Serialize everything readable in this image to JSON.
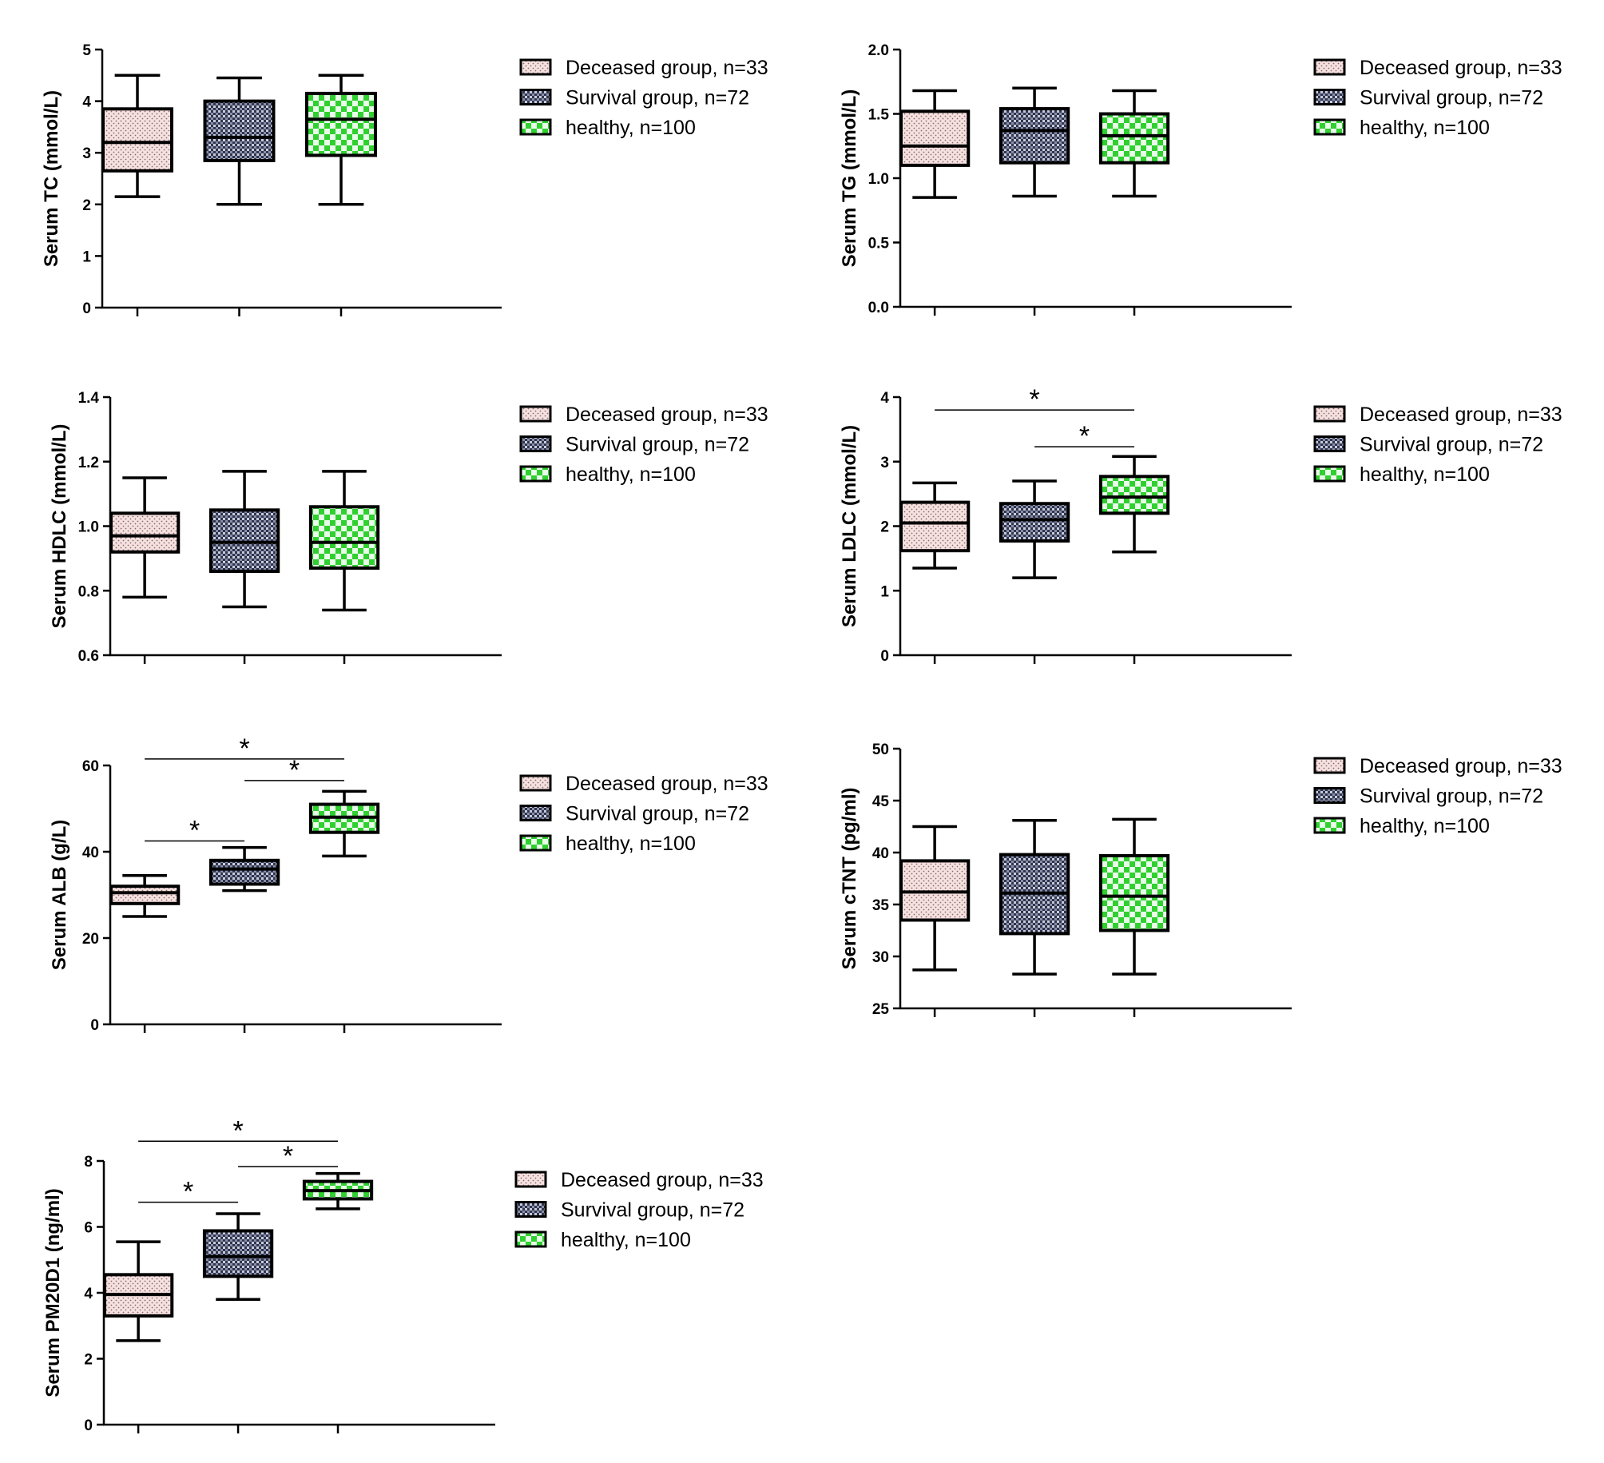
{
  "legend_labels": [
    "Deceased group, n=33",
    "Survival group, n=72",
    "healthy, n=100"
  ],
  "group_fills": [
    "dotted-pink",
    "crosshatch-gray",
    "checker-green"
  ],
  "colors": {
    "pink": "#f6e1e1",
    "gray": "#8a8fa6",
    "green": "#2fd02f",
    "ink": "#000000"
  },
  "chart_data": [
    {
      "type": "box",
      "ylabel": "Serum TC (mmol/L)",
      "ylim": [
        0,
        5
      ],
      "yticks": [
        "0",
        "1",
        "2",
        "3",
        "4",
        "5"
      ],
      "ytick_values": [
        0,
        1,
        2,
        3,
        4,
        5
      ],
      "categories": [
        "",
        "",
        ""
      ],
      "series": [
        {
          "name": "Deceased group, n=33",
          "min": 2.15,
          "q1": 2.65,
          "median": 3.2,
          "q3": 3.85,
          "max": 4.5
        },
        {
          "name": "Survival group, n=72",
          "min": 2.0,
          "q1": 2.85,
          "median": 3.3,
          "q3": 4.0,
          "max": 4.45
        },
        {
          "name": "healthy, n=100",
          "min": 2.0,
          "q1": 2.95,
          "median": 3.65,
          "q3": 4.15,
          "max": 4.5
        }
      ],
      "significance": []
    },
    {
      "type": "box",
      "ylabel": "Serum TG (mmol/L)",
      "ylim": [
        0,
        2
      ],
      "yticks": [
        "0.0",
        "0.5",
        "1.0",
        "1.5",
        "2.0"
      ],
      "ytick_values": [
        0,
        0.5,
        1,
        1.5,
        2
      ],
      "categories": [
        "",
        "",
        ""
      ],
      "series": [
        {
          "name": "Deceased group, n=33",
          "min": 0.85,
          "q1": 1.1,
          "median": 1.25,
          "q3": 1.52,
          "max": 1.68
        },
        {
          "name": "Survival group, n=72",
          "min": 0.86,
          "q1": 1.12,
          "median": 1.37,
          "q3": 1.54,
          "max": 1.7
        },
        {
          "name": "healthy, n=100",
          "min": 0.86,
          "q1": 1.12,
          "median": 1.33,
          "q3": 1.5,
          "max": 1.68
        }
      ],
      "significance": []
    },
    {
      "type": "box",
      "ylabel": "Serum HDLC (mmol/L)",
      "ylim": [
        0.6,
        1.4
      ],
      "yticks": [
        "0.6",
        "0.8",
        "1.0",
        "1.2",
        "1.4"
      ],
      "ytick_values": [
        0.6,
        0.8,
        1.0,
        1.2,
        1.4
      ],
      "categories": [
        "",
        "",
        ""
      ],
      "series": [
        {
          "name": "Deceased group, n=33",
          "min": 0.78,
          "q1": 0.92,
          "median": 0.97,
          "q3": 1.04,
          "max": 1.15
        },
        {
          "name": "Survival group, n=72",
          "min": 0.75,
          "q1": 0.86,
          "median": 0.95,
          "q3": 1.05,
          "max": 1.17
        },
        {
          "name": "healthy, n=100",
          "min": 0.74,
          "q1": 0.87,
          "median": 0.95,
          "q3": 1.06,
          "max": 1.17
        }
      ],
      "significance": []
    },
    {
      "type": "box",
      "ylabel": "Serum LDLC (mmol/L)",
      "ylim": [
        0,
        4
      ],
      "yticks": [
        "0",
        "1",
        "2",
        "3",
        "4"
      ],
      "ytick_values": [
        0,
        1,
        2,
        3,
        4
      ],
      "categories": [
        "",
        "",
        ""
      ],
      "series": [
        {
          "name": "Deceased group, n=33",
          "min": 1.35,
          "q1": 1.62,
          "median": 2.05,
          "q3": 2.37,
          "max": 2.67
        },
        {
          "name": "Survival group, n=72",
          "min": 1.2,
          "q1": 1.77,
          "median": 2.1,
          "q3": 2.35,
          "max": 2.7
        },
        {
          "name": "healthy, n=100",
          "min": 1.6,
          "q1": 2.2,
          "median": 2.45,
          "q3": 2.77,
          "max": 3.08
        }
      ],
      "significance": [
        {
          "from": 0,
          "to": 2,
          "y": 3.8,
          "label": "*"
        },
        {
          "from": 1,
          "to": 2,
          "y": 3.23,
          "label": "*"
        }
      ]
    },
    {
      "type": "box",
      "ylabel": "Serum ALB (g/L)",
      "ylim": [
        0,
        60
      ],
      "yticks": [
        "0",
        "20",
        "40",
        "60"
      ],
      "ytick_values": [
        0,
        20,
        40,
        60
      ],
      "categories": [
        "",
        "",
        ""
      ],
      "series": [
        {
          "name": "Deceased group, n=33",
          "min": 25,
          "q1": 28,
          "median": 30.5,
          "q3": 32,
          "max": 34.5
        },
        {
          "name": "Survival group, n=72",
          "min": 31,
          "q1": 32.5,
          "median": 36,
          "q3": 38,
          "max": 41
        },
        {
          "name": "healthy, n=100",
          "min": 39,
          "q1": 44.5,
          "median": 48,
          "q3": 51,
          "max": 54
        }
      ],
      "significance": [
        {
          "from": 0,
          "to": 2,
          "y": 61.5,
          "label": "*"
        },
        {
          "from": 1,
          "to": 2,
          "y": 56.5,
          "label": "*"
        },
        {
          "from": 0,
          "to": 1,
          "y": 42.5,
          "label": "*"
        }
      ]
    },
    {
      "type": "box",
      "ylabel": "Serum cTNT (pg/ml)",
      "ylim": [
        25,
        50
      ],
      "yticks": [
        "25",
        "30",
        "35",
        "40",
        "45",
        "50"
      ],
      "ytick_values": [
        25,
        30,
        35,
        40,
        45,
        50
      ],
      "categories": [
        "",
        "",
        ""
      ],
      "series": [
        {
          "name": "Deceased group, n=33",
          "min": 28.7,
          "q1": 33.5,
          "median": 36.2,
          "q3": 39.2,
          "max": 42.5
        },
        {
          "name": "Survival group, n=72",
          "min": 28.3,
          "q1": 32.2,
          "median": 36.1,
          "q3": 39.8,
          "max": 43.1
        },
        {
          "name": "healthy, n=100",
          "min": 28.3,
          "q1": 32.5,
          "median": 35.8,
          "q3": 39.7,
          "max": 43.2
        }
      ],
      "significance": []
    },
    {
      "type": "box",
      "ylabel": "Serum PM20D1 (ng/ml)",
      "ylim": [
        0,
        8
      ],
      "yticks": [
        "0",
        "2",
        "4",
        "6",
        "8"
      ],
      "ytick_values": [
        0,
        2,
        4,
        6,
        8
      ],
      "categories": [
        "",
        "",
        ""
      ],
      "series": [
        {
          "name": "Deceased group, n=33",
          "min": 2.55,
          "q1": 3.3,
          "median": 3.95,
          "q3": 4.55,
          "max": 5.55
        },
        {
          "name": "Survival group, n=72",
          "min": 3.8,
          "q1": 4.5,
          "median": 5.1,
          "q3": 5.88,
          "max": 6.4
        },
        {
          "name": "healthy, n=100",
          "min": 6.55,
          "q1": 6.85,
          "median": 7.1,
          "q3": 7.38,
          "max": 7.62
        }
      ],
      "significance": [
        {
          "from": 0,
          "to": 2,
          "y": 8.6,
          "label": "*"
        },
        {
          "from": 1,
          "to": 2,
          "y": 7.83,
          "label": "*"
        },
        {
          "from": 0,
          "to": 1,
          "y": 6.75,
          "label": "*"
        }
      ]
    }
  ]
}
